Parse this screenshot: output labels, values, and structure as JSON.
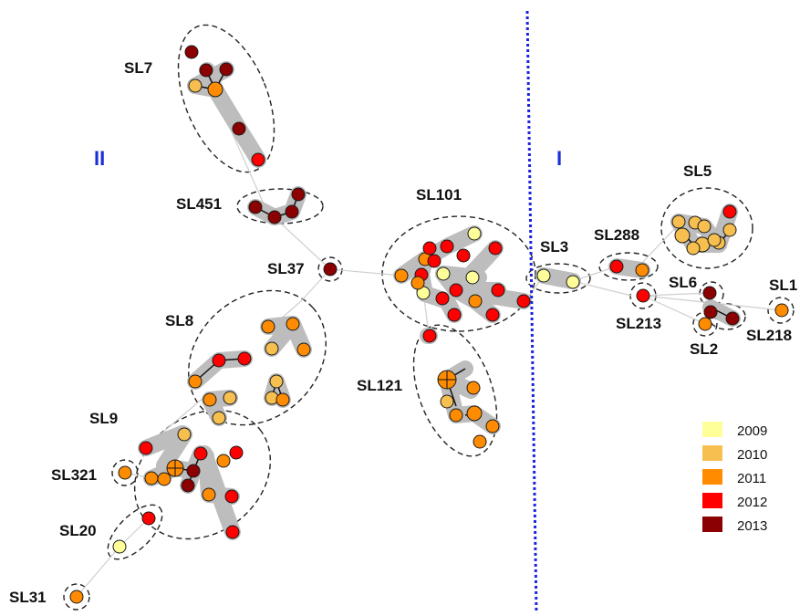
{
  "groups": [
    {
      "key": "II",
      "label": "II"
    },
    {
      "key": "I",
      "label": "I"
    }
  ],
  "legend": [
    {
      "year": "2009",
      "color": "#ffff99"
    },
    {
      "year": "2010",
      "color": "#f6bf4f"
    },
    {
      "year": "2011",
      "color": "#ff8c00"
    },
    {
      "year": "2012",
      "color": "#ff0000"
    },
    {
      "year": "2013",
      "color": "#8b0000"
    }
  ],
  "clusters": [
    {
      "label": "SL7"
    },
    {
      "label": "SL451"
    },
    {
      "label": "SL37"
    },
    {
      "label": "SL8"
    },
    {
      "label": "SL9"
    },
    {
      "label": "SL321"
    },
    {
      "label": "SL20"
    },
    {
      "label": "SL31"
    },
    {
      "label": "SL101"
    },
    {
      "label": "SL121"
    },
    {
      "label": "SL3"
    },
    {
      "label": "SL288"
    },
    {
      "label": "SL5"
    },
    {
      "label": "SL213"
    },
    {
      "label": "SL6"
    },
    {
      "label": "SL1"
    },
    {
      "label": "SL2"
    },
    {
      "label": "SL218"
    }
  ]
}
